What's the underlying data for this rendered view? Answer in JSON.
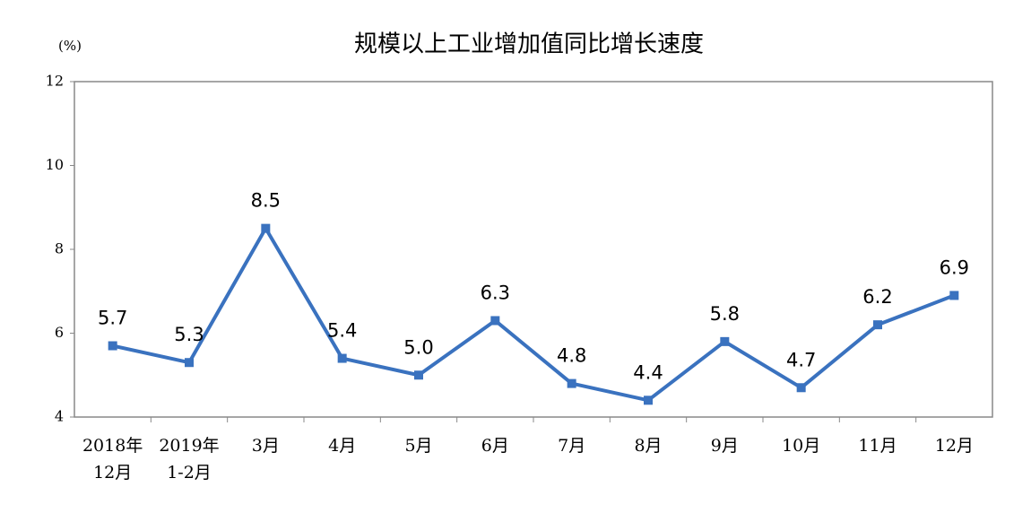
{
  "chart_data": {
    "type": "line",
    "title": "规模以上工业增加值同比增长速度",
    "y_label": "(%)",
    "categories": [
      "2018年\n12月",
      "2019年\n1-2月",
      "3月",
      "4月",
      "5月",
      "6月",
      "7月",
      "8月",
      "9月",
      "10月",
      "11月",
      "12月"
    ],
    "series": [
      {
        "name": "规模以上工业增加值同比增长速度",
        "color": "#3a72bf",
        "values": [
          5.7,
          5.3,
          8.5,
          5.4,
          5.0,
          6.3,
          4.8,
          4.4,
          5.8,
          4.7,
          6.2,
          6.9
        ],
        "value_labels": [
          "5.7",
          "5.3",
          "8.5",
          "5.4",
          "5.0",
          "6.3",
          "4.8",
          "4.4",
          "5.8",
          "4.7",
          "6.2",
          "6.9"
        ]
      }
    ],
    "ylim": [
      4,
      12
    ],
    "yticks": [
      4,
      6,
      8,
      10,
      12
    ],
    "grid": false
  }
}
